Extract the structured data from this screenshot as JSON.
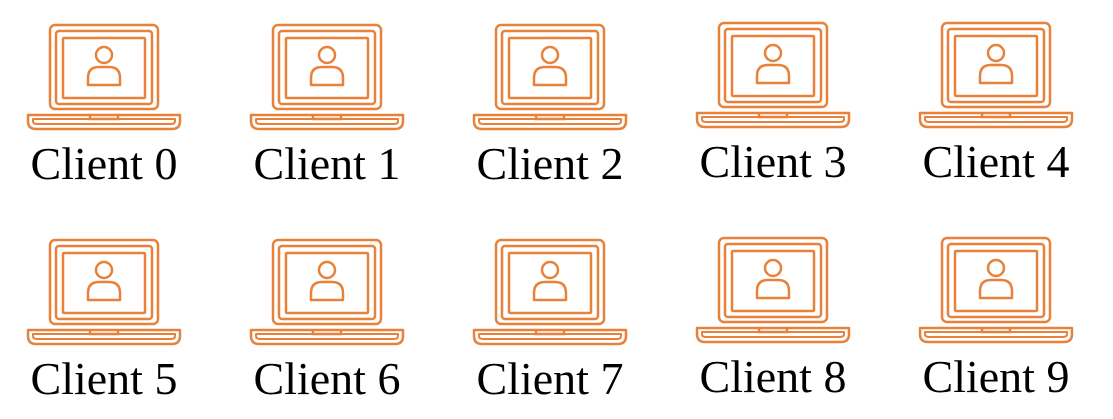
{
  "colors": {
    "icon": "#E8823A",
    "label": "#000000",
    "background": "#ffffff"
  },
  "icon_name": "laptop-user-icon",
  "clients": [
    {
      "label": "Client 0"
    },
    {
      "label": "Client 1"
    },
    {
      "label": "Client 2"
    },
    {
      "label": "Client 3"
    },
    {
      "label": "Client 4"
    },
    {
      "label": "Client 5"
    },
    {
      "label": "Client 6"
    },
    {
      "label": "Client 7"
    },
    {
      "label": "Client 8"
    },
    {
      "label": "Client 9"
    }
  ]
}
